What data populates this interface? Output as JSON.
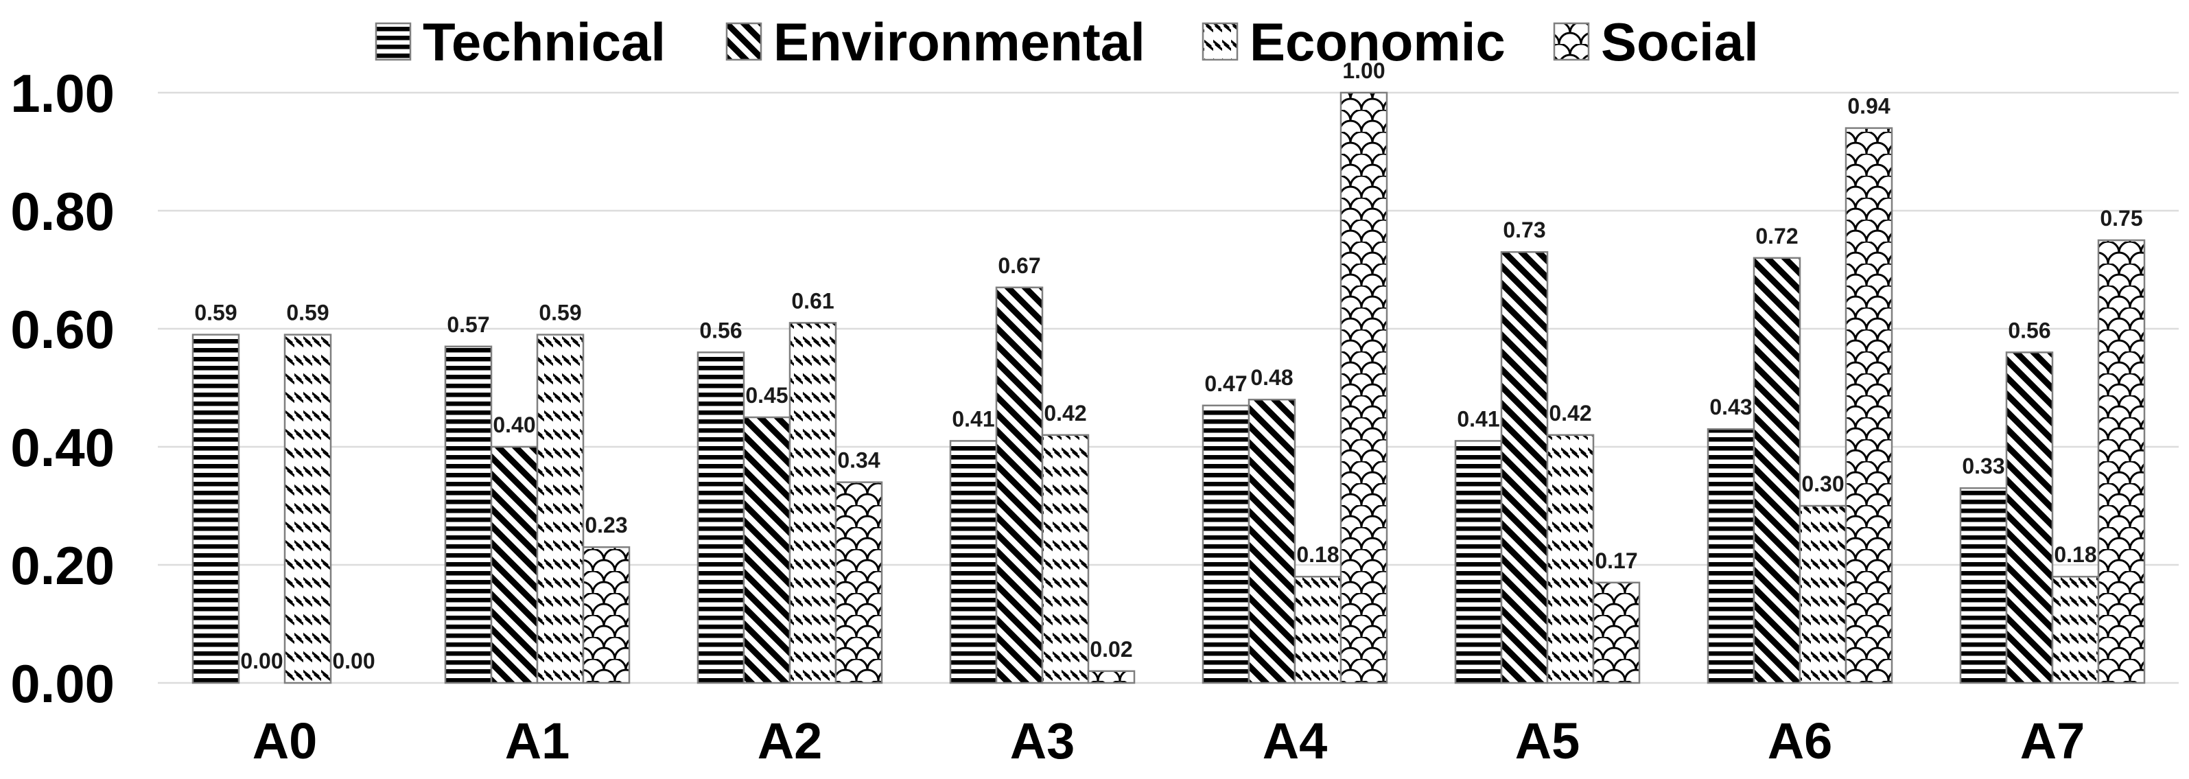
{
  "chart_data": {
    "type": "bar",
    "title": "",
    "categories": [
      "A0",
      "A1",
      "A2",
      "A3",
      "A4",
      "A5",
      "A6",
      "A7"
    ],
    "series": [
      {
        "name": "Technical",
        "pattern": "horizontal-stripes",
        "values": [
          0.59,
          0.57,
          0.56,
          0.41,
          0.47,
          0.41,
          0.43,
          0.33
        ]
      },
      {
        "name": "Environmental",
        "pattern": "diagonal-stripes",
        "values": [
          0.0,
          0.4,
          0.45,
          0.67,
          0.48,
          0.73,
          0.72,
          0.56
        ]
      },
      {
        "name": "Economic",
        "pattern": "diagonal-dashes",
        "values": [
          0.59,
          0.59,
          0.61,
          0.42,
          0.18,
          0.42,
          0.3,
          0.18
        ]
      },
      {
        "name": "Social",
        "pattern": "shingle",
        "values": [
          0.0,
          0.23,
          0.34,
          0.02,
          1.0,
          0.17,
          0.94,
          0.75
        ]
      }
    ],
    "y_axis": {
      "min": 0,
      "max": 1,
      "ticks": [
        "0.00",
        "0.20",
        "0.40",
        "0.60",
        "0.80",
        "1.00"
      ]
    },
    "data_label_format": "0.00",
    "data_labels_visible": true,
    "grid": true,
    "legend_position": "top",
    "colors": {
      "foreground": "#000000",
      "background": "#ffffff",
      "gridline": "#dcdcdc",
      "bar_border": "#7f7f7f",
      "text": "#000000",
      "data_label": "#1a1a1a"
    }
  }
}
